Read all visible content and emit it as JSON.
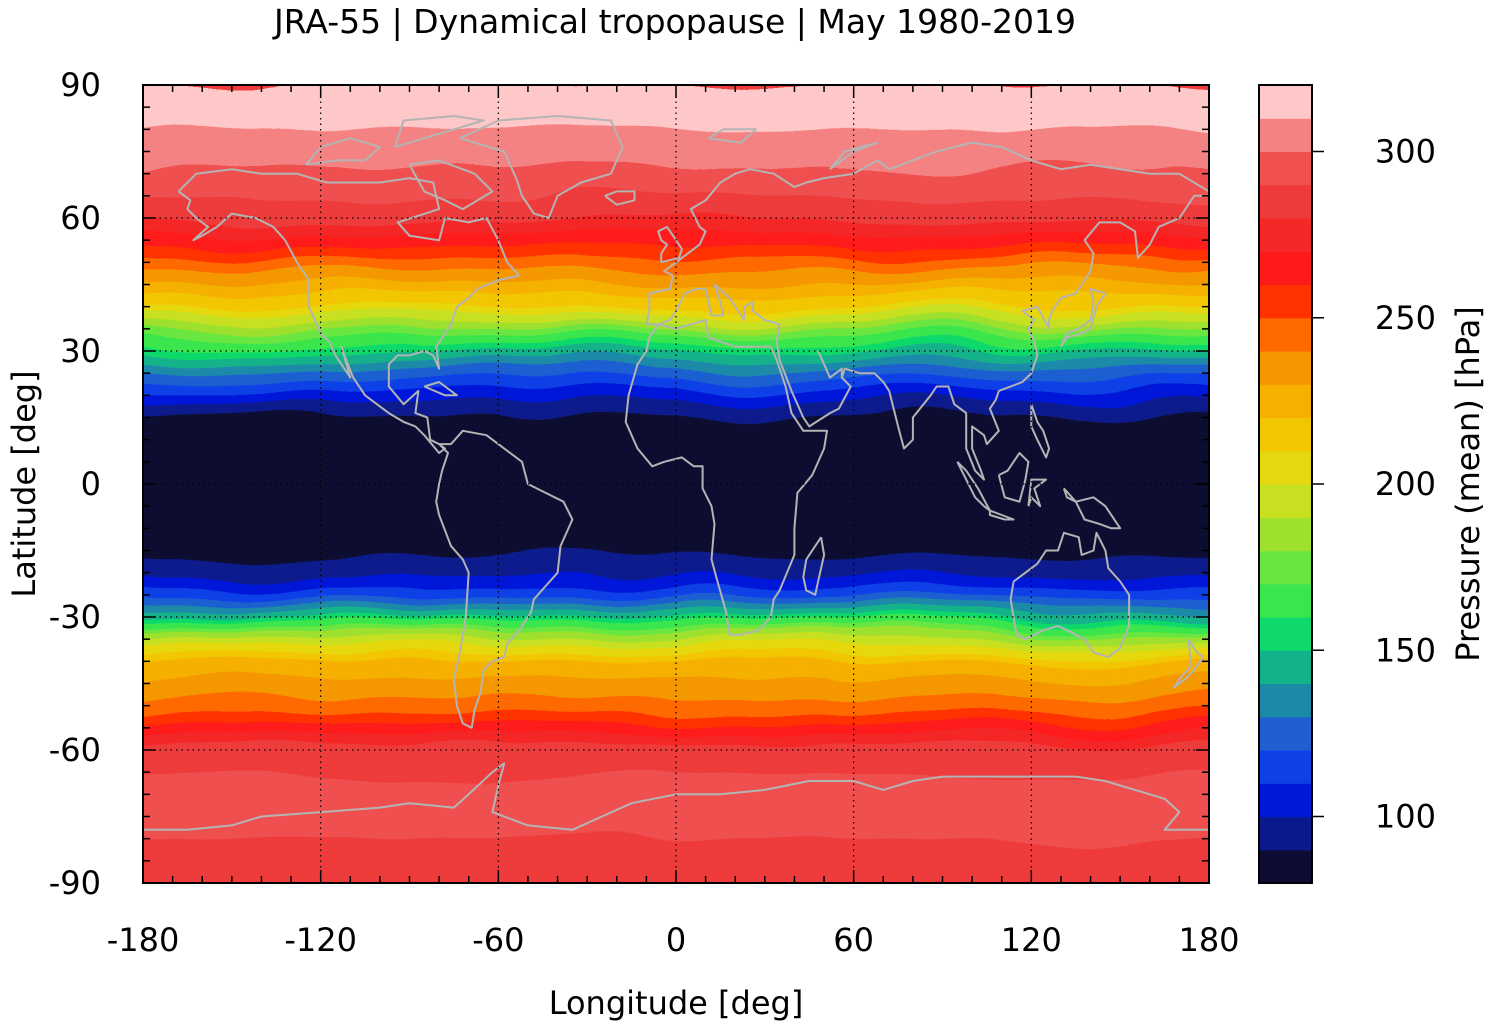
{
  "title": "JRA-55 | Dynamical tropopause | May 1980-2019",
  "map": {
    "type": "filled-contour map",
    "projection": "equirectangular",
    "xlabel": "Longitude [deg]",
    "ylabel": "Latitude [deg]",
    "xlim": [
      -180,
      180
    ],
    "ylim": [
      -90,
      90
    ],
    "xticks": [
      "-180",
      "-120",
      "-60",
      "0",
      "60",
      "120",
      "180"
    ],
    "yticks": [
      "90",
      "60",
      "30",
      "0",
      "-30",
      "-60",
      "-90"
    ],
    "grid": "dotted",
    "coastline_color": "#b4b4b4"
  },
  "colorbar": {
    "label": "Pressure (mean) [hPa]",
    "range": [
      80,
      320
    ],
    "step": 10,
    "ticks": [
      "100",
      "150",
      "200",
      "250",
      "300"
    ],
    "colors": [
      "#0d0d33",
      "#0a1a8c",
      "#0019d9",
      "#0d40e6",
      "#1f5fd0",
      "#1a8aa8",
      "#12b38a",
      "#10d96b",
      "#3ae64d",
      "#6be640",
      "#9ee02e",
      "#c8e020",
      "#e6d810",
      "#f2c600",
      "#f5b000",
      "#f59800",
      "#ff6a00",
      "#ff3300",
      "#ff1a1a",
      "#f52828",
      "#ee3a3a",
      "#f05050",
      "#f58282",
      "#ffc8c8"
    ]
  },
  "chart_data": {
    "type": "heatmap",
    "title": "JRA-55 | Dynamical tropopause | May 1980-2019",
    "xlabel": "Longitude [deg]",
    "ylabel": "Latitude [deg]",
    "colorbar_label": "Pressure (mean) [hPa]",
    "xlim": [
      -180,
      180
    ],
    "ylim": [
      -90,
      90
    ],
    "zlim": [
      80,
      320
    ],
    "zonal_profile_hPa": {
      "lat": [
        90,
        85,
        75,
        65,
        60,
        55,
        50,
        45,
        40,
        35,
        30,
        25,
        20,
        15,
        0,
        -15,
        -20,
        -25,
        -30,
        -35,
        -40,
        -45,
        -50,
        -55,
        -60,
        -70,
        -80,
        -90
      ],
      "pressure": [
        318,
        315,
        305,
        290,
        282,
        265,
        245,
        228,
        210,
        180,
        150,
        125,
        105,
        88,
        88,
        88,
        95,
        115,
        150,
        190,
        220,
        235,
        245,
        265,
        285,
        293,
        290,
        285
      ]
    }
  }
}
